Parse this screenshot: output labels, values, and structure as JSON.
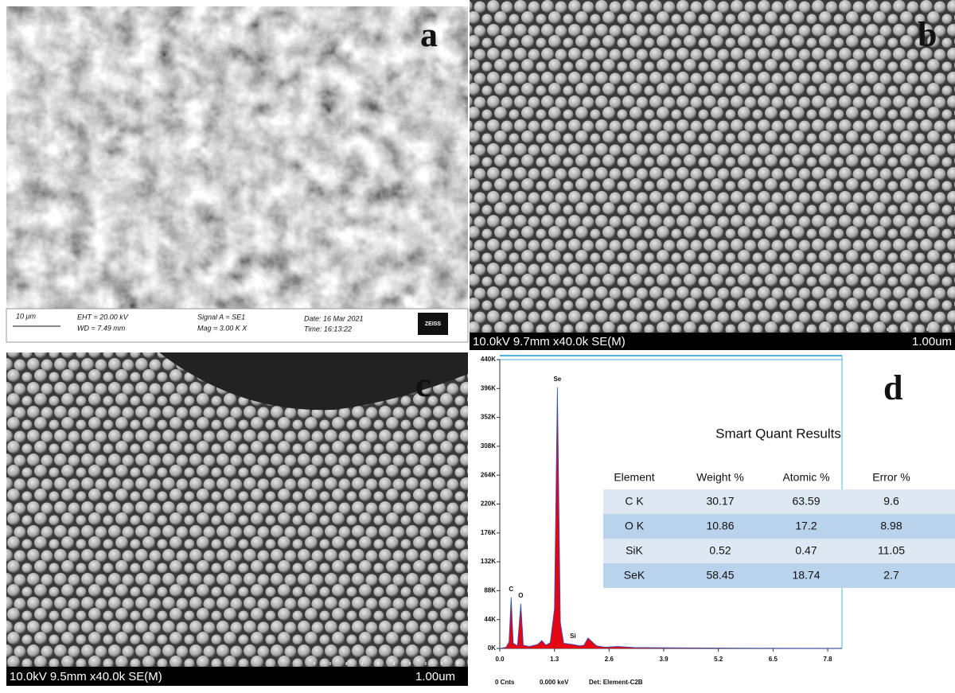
{
  "panel_a": {
    "label": "a",
    "scale_bar": "10 μm",
    "eht": "EHT = 20.00 kV",
    "wd": "WD = 7.49 mm",
    "signal": "Signal A = SE1",
    "mag": "Mag =   3.00 K X",
    "date": "Date: 16 Mar 2021",
    "time": "Time: 16:13:22",
    "logo": "ZEISS"
  },
  "panel_b": {
    "label": "b",
    "settings": "10.0kV 9.7mm x40.0k SE(M)",
    "scale_bar": "1.00um"
  },
  "panel_c": {
    "label": "c",
    "settings": "10.0kV 9.5mm x40.0k SE(M)",
    "scale_bar": "1.00um"
  },
  "panel_d": {
    "label": "d",
    "table": {
      "title": "Smart Quant Results",
      "header": [
        "Element",
        "Weight %",
        "Atomic %",
        "Error %"
      ],
      "rows": [
        [
          "C K",
          "30.17",
          "63.59",
          "9.6"
        ],
        [
          "O K",
          "10.86",
          "17.2",
          "8.98"
        ],
        [
          "SiK",
          "0.52",
          "0.47",
          "11.05"
        ],
        [
          "SeK",
          "58.45",
          "18.74",
          "2.7"
        ]
      ]
    },
    "footer": [
      "0 Cnts",
      "0.000 keV",
      "Det: Element-C2B"
    ]
  },
  "chart_data": {
    "type": "area",
    "x": [
      0,
      0.15,
      0.22,
      0.27,
      0.32,
      0.42,
      0.5,
      0.56,
      0.7,
      0.9,
      1.0,
      1.1,
      1.2,
      1.3,
      1.37,
      1.44,
      1.52,
      1.74,
      1.9,
      2.0,
      2.1,
      2.2,
      2.3,
      2.5,
      2.8,
      3.2,
      4,
      6,
      8.14
    ],
    "series": [
      {
        "color": "#e30613",
        "values": [
          0,
          2000,
          10000,
          78000,
          8000,
          4000,
          68000,
          5000,
          3000,
          6000,
          12000,
          5000,
          9000,
          60000,
          398000,
          40000,
          8000,
          6000,
          4000,
          5000,
          16000,
          10000,
          4000,
          2000,
          3000,
          1500,
          1000,
          500,
          300
        ]
      }
    ],
    "xlim": [
      0,
      8.14
    ],
    "ylim": [
      0,
      440000
    ],
    "xticks": [
      {
        "value": 0,
        "label": "0.0"
      },
      1.3,
      2.6,
      3.9,
      5.2,
      6.5,
      7.8
    ],
    "yticks": [
      {
        "value": 0,
        "label": "0K"
      },
      {
        "value": 44000,
        "label": "44K"
      },
      {
        "value": 88000,
        "label": "88K"
      },
      {
        "value": 132000,
        "label": "132K"
      },
      {
        "value": 176000,
        "label": "176K"
      },
      {
        "value": 220000,
        "label": "220K"
      },
      {
        "value": 264000,
        "label": "264K"
      },
      {
        "value": 308000,
        "label": "308K"
      },
      {
        "value": 352000,
        "label": "352K"
      },
      {
        "value": 396000,
        "label": "396K"
      },
      {
        "value": 440000,
        "label": "440K"
      }
    ],
    "annotations": [
      {
        "text": "C",
        "x": 0.27,
        "y": 78000
      },
      {
        "text": "O",
        "x": 0.5,
        "y": 68000
      },
      {
        "text": "Se",
        "x": 1.37,
        "y": 398000
      },
      {
        "text": "Si",
        "x": 1.74,
        "y": 6000
      }
    ]
  }
}
